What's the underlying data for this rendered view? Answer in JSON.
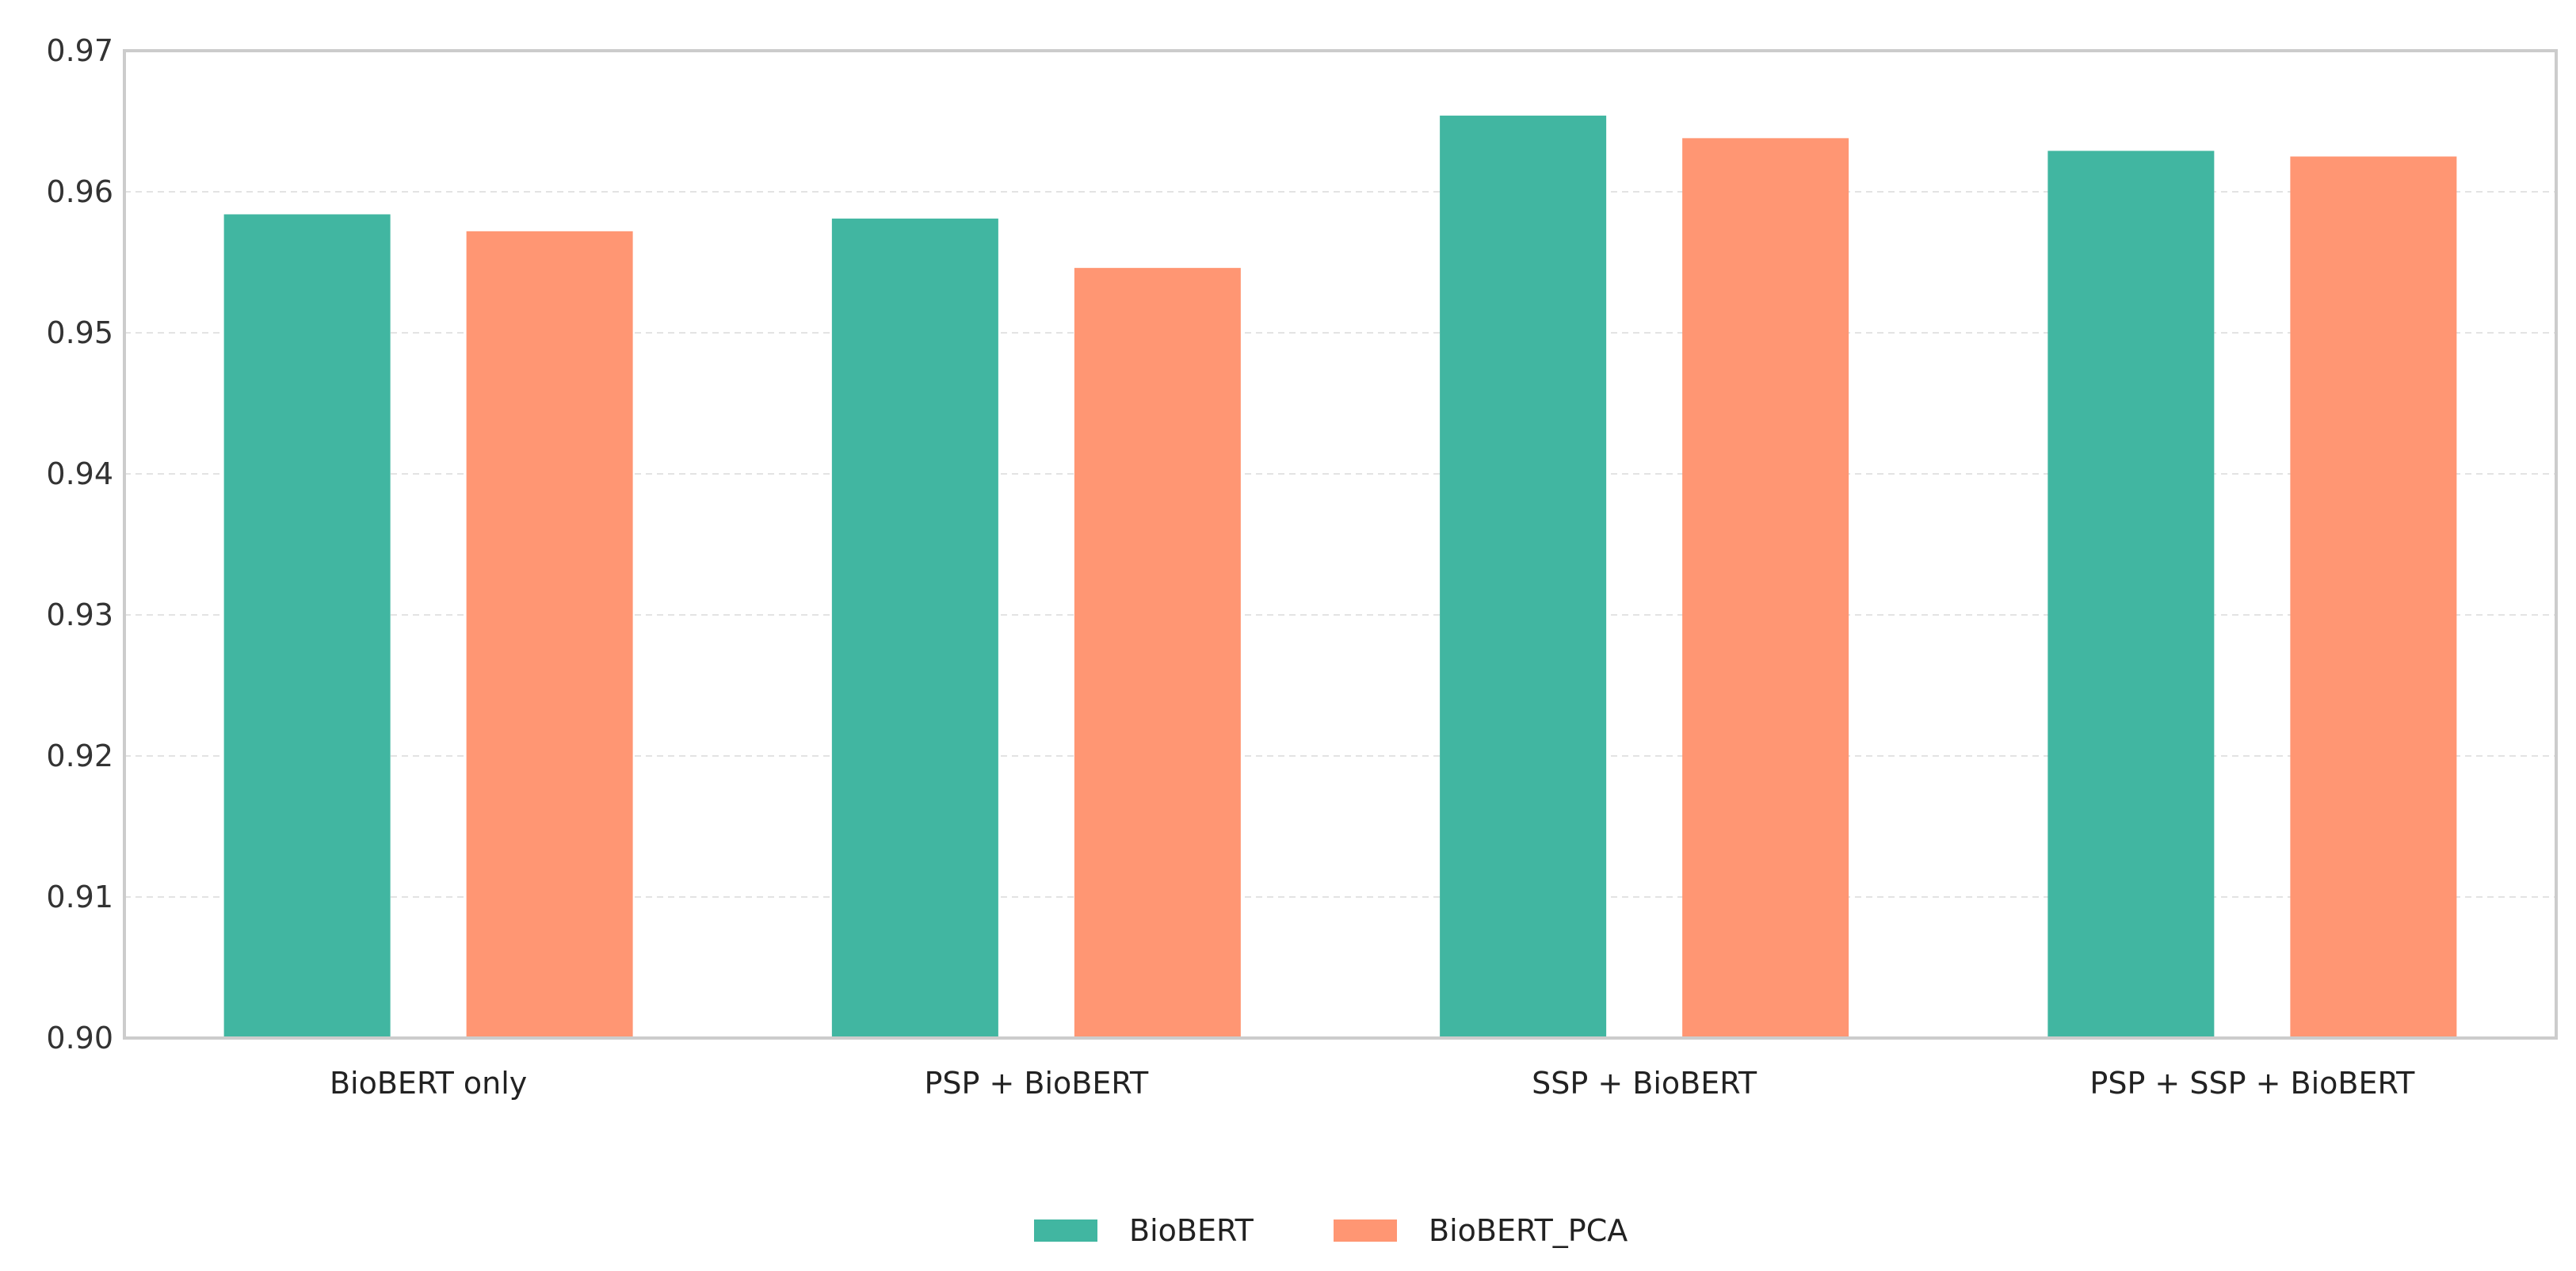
{
  "chart_data": {
    "type": "bar",
    "title": "",
    "xlabel": "",
    "ylabel": "",
    "categories": [
      "BioBERT only",
      "PSP + BioBERT",
      "SSP + BioBERT",
      "PSP + SSP + BioBERT"
    ],
    "series": [
      {
        "name": "BioBERT",
        "color": "#41b6a1",
        "values": [
          0.9584,
          0.9581,
          0.9654,
          0.9629
        ]
      },
      {
        "name": "BioBERT_PCA",
        "color": "#ff9673",
        "values": [
          0.9572,
          0.9546,
          0.9638,
          0.9625
        ]
      }
    ],
    "ylim": [
      0.9,
      0.97
    ],
    "yticks": [
      "0.90",
      "0.91",
      "0.92",
      "0.93",
      "0.94",
      "0.95",
      "0.96",
      "0.97"
    ],
    "grid": "horizontal-dashed",
    "legend_position": "bottom-center"
  }
}
